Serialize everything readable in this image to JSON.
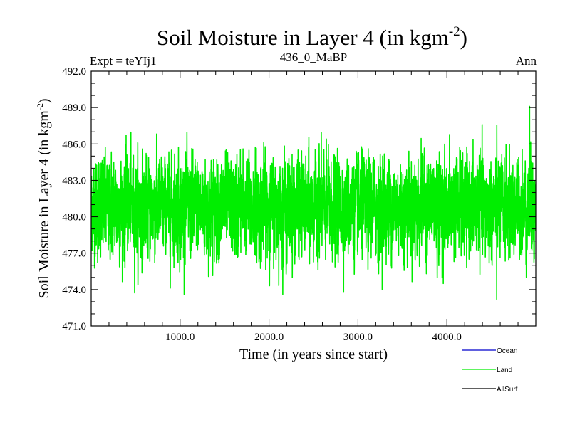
{
  "chart_data": {
    "type": "line",
    "title": "Soil Moisture in Layer 4 (in kgm",
    "title_superscript": "-2",
    "title_close": ")",
    "subtitle_left": "Expt = teYIj1",
    "subtitle_center": "436_0_MaBP",
    "subtitle_right": "Ann",
    "xlabel": "Time (in years since start)",
    "ylabel": "Soil Moisture in Layer 4 (in kgm",
    "ylabel_superscript": "-2",
    "ylabel_close": ")",
    "xlim": [
      0,
      5000
    ],
    "ylim": [
      471.0,
      492.0
    ],
    "x_ticks": [
      1000,
      2000,
      3000,
      4000
    ],
    "x_tick_labels": [
      "1000.0",
      "2000.0",
      "3000.0",
      "4000.0"
    ],
    "y_ticks": [
      471.0,
      474.0,
      477.0,
      480.0,
      483.0,
      486.0,
      489.0,
      492.0
    ],
    "y_tick_labels": [
      "471.0",
      "474.0",
      "477.0",
      "480.0",
      "483.0",
      "486.0",
      "489.0",
      "492.0"
    ],
    "series": [
      {
        "name": "Land",
        "color": "#00ee00",
        "generated": true,
        "n_points": 5000,
        "mean": 480.8,
        "std": 2.0,
        "min": 473.2,
        "max": 489.1,
        "max_at_x": 4930,
        "min_at_x": 4560
      }
    ],
    "legend": [
      {
        "name": "Ocean",
        "color": "#0000cc"
      },
      {
        "name": "Land",
        "color": "#00ee00"
      },
      {
        "name": "AllSurf",
        "color": "#000000"
      }
    ]
  }
}
